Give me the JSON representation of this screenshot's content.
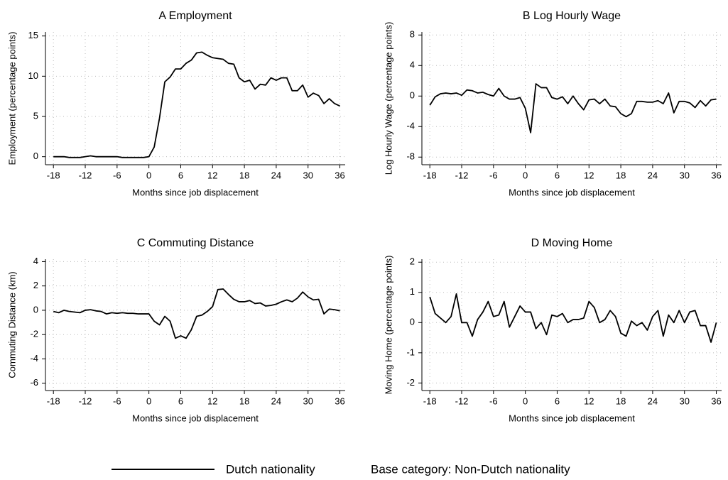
{
  "chart_data": [
    {
      "type": "line",
      "title": "A Employment",
      "x_label": "Months since job displacement",
      "y_label": "Employment (percentage points)",
      "x": [
        -18,
        -17,
        -16,
        -15,
        -14,
        -13,
        -12,
        -11,
        -10,
        -9,
        -8,
        -7,
        -6,
        -5,
        -4,
        -3,
        -2,
        -1,
        0,
        1,
        2,
        3,
        4,
        5,
        6,
        7,
        8,
        9,
        10,
        11,
        12,
        13,
        14,
        15,
        16,
        17,
        18,
        19,
        20,
        21,
        22,
        23,
        24,
        25,
        26,
        27,
        28,
        29,
        30,
        31,
        32,
        33,
        34,
        35,
        36
      ],
      "values": [
        0,
        0,
        0,
        -0.1,
        -0.1,
        -0.1,
        0,
        0.1,
        0,
        0,
        0,
        0,
        0,
        -0.1,
        -0.1,
        -0.1,
        -0.1,
        -0.1,
        0,
        1.2,
        4.8,
        9.3,
        9.9,
        10.9,
        10.9,
        11.6,
        12.0,
        12.9,
        13.0,
        12.6,
        12.3,
        12.2,
        12.1,
        11.6,
        11.5,
        9.8,
        9.3,
        9.5,
        8.4,
        9.0,
        8.9,
        9.8,
        9.5,
        9.8,
        9.8,
        8.2,
        8.2,
        8.9,
        7.4,
        7.9,
        7.6,
        6.6,
        7.2,
        6.6,
        6.3
      ],
      "color": "#000000",
      "xlim": [
        -19.5,
        37
      ],
      "xticks": [
        -18,
        -12,
        -6,
        0,
        6,
        12,
        18,
        24,
        30,
        36
      ],
      "ylim": [
        -1,
        15.5
      ],
      "yticks": [
        0,
        5,
        10,
        15
      ],
      "grid": true
    },
    {
      "type": "line",
      "title": "B Log Hourly Wage",
      "x_label": "Months since job displacement",
      "y_label": "Log Hourly Wage (percentage points)",
      "x": [
        -18,
        -17,
        -16,
        -15,
        -14,
        -13,
        -12,
        -11,
        -10,
        -9,
        -8,
        -7,
        -6,
        -5,
        -4,
        -3,
        -2,
        -1,
        0,
        1,
        2,
        3,
        4,
        5,
        6,
        7,
        8,
        9,
        10,
        11,
        12,
        13,
        14,
        15,
        16,
        17,
        18,
        19,
        20,
        21,
        22,
        23,
        24,
        25,
        26,
        27,
        28,
        29,
        30,
        31,
        32,
        33,
        34,
        35,
        36
      ],
      "values": [
        -1.2,
        -0.1,
        0.3,
        0.4,
        0.3,
        0.4,
        0.1,
        0.8,
        0.7,
        0.4,
        0.5,
        0.2,
        0.0,
        1.0,
        0.0,
        -0.4,
        -0.4,
        -0.2,
        -1.6,
        -4.8,
        1.6,
        1.1,
        1.1,
        -0.2,
        -0.4,
        -0.1,
        -1.0,
        0.0,
        -1.0,
        -1.8,
        -0.5,
        -0.4,
        -1.0,
        -0.4,
        -1.3,
        -1.4,
        -2.3,
        -2.7,
        -2.3,
        -0.7,
        -0.7,
        -0.8,
        -0.8,
        -0.6,
        -1.0,
        0.4,
        -2.2,
        -0.7,
        -0.7,
        -0.9,
        -1.5,
        -0.6,
        -1.3,
        -0.5,
        -0.4
      ],
      "color": "#000000",
      "xlim": [
        -19.5,
        37
      ],
      "xticks": [
        -18,
        -12,
        -6,
        0,
        6,
        12,
        18,
        24,
        30,
        36
      ],
      "ylim": [
        -9,
        8.4
      ],
      "yticks": [
        -8,
        -4,
        0,
        4,
        8
      ],
      "grid": true
    },
    {
      "type": "line",
      "title": "C Commuting Distance",
      "x_label": "Months since job displacement",
      "y_label": "Commuting Distance (km)",
      "x": [
        -18,
        -17,
        -16,
        -15,
        -14,
        -13,
        -12,
        -11,
        -10,
        -9,
        -8,
        -7,
        -6,
        -5,
        -4,
        -3,
        -2,
        -1,
        0,
        1,
        2,
        3,
        4,
        5,
        6,
        7,
        8,
        9,
        10,
        11,
        12,
        13,
        14,
        15,
        16,
        17,
        18,
        19,
        20,
        21,
        22,
        23,
        24,
        25,
        26,
        27,
        28,
        29,
        30,
        31,
        32,
        33,
        34,
        35,
        36
      ],
      "values": [
        -0.1,
        -0.2,
        0,
        -0.1,
        -0.15,
        -0.2,
        0,
        0.05,
        -0.05,
        -0.1,
        -0.3,
        -0.2,
        -0.25,
        -0.2,
        -0.25,
        -0.25,
        -0.3,
        -0.3,
        -0.3,
        -0.9,
        -1.2,
        -0.5,
        -0.9,
        -2.3,
        -2.1,
        -2.3,
        -1.6,
        -0.5,
        -0.4,
        -0.1,
        0.3,
        1.7,
        1.75,
        1.3,
        0.9,
        0.7,
        0.7,
        0.8,
        0.55,
        0.6,
        0.35,
        0.4,
        0.5,
        0.7,
        0.85,
        0.7,
        1.0,
        1.5,
        1.1,
        0.85,
        0.9,
        -0.3,
        0.1,
        0.05,
        -0.05
      ],
      "color": "#000000",
      "xlim": [
        -19.5,
        37
      ],
      "xticks": [
        -18,
        -12,
        -6,
        0,
        6,
        12,
        18,
        24,
        30,
        36
      ],
      "ylim": [
        -6.6,
        4.2
      ],
      "yticks": [
        -6,
        -4,
        -2,
        0,
        2,
        4
      ],
      "grid": true
    },
    {
      "type": "line",
      "title": "D Moving Home",
      "x_label": "Months since job displacement",
      "y_label": "Moving Home (percentage points)",
      "x": [
        -18,
        -17,
        -16,
        -15,
        -14,
        -13,
        -12,
        -11,
        -10,
        -9,
        -8,
        -7,
        -6,
        -5,
        -4,
        -3,
        -2,
        -1,
        0,
        1,
        2,
        3,
        4,
        5,
        6,
        7,
        8,
        9,
        10,
        11,
        12,
        13,
        14,
        15,
        16,
        17,
        18,
        19,
        20,
        21,
        22,
        23,
        24,
        25,
        26,
        27,
        28,
        29,
        30,
        31,
        32,
        33,
        34,
        35,
        36
      ],
      "values": [
        0.85,
        0.3,
        0.15,
        0.0,
        0.2,
        0.95,
        0.0,
        0.0,
        -0.45,
        0.1,
        0.35,
        0.7,
        0.2,
        0.25,
        0.7,
        -0.15,
        0.2,
        0.55,
        0.35,
        0.35,
        -0.2,
        0.0,
        -0.4,
        0.25,
        0.2,
        0.3,
        0.0,
        0.1,
        0.1,
        0.15,
        0.7,
        0.5,
        0.0,
        0.1,
        0.4,
        0.2,
        -0.35,
        -0.45,
        0.05,
        -0.1,
        0.0,
        -0.25,
        0.2,
        0.4,
        -0.45,
        0.25,
        0.0,
        0.4,
        0.0,
        0.35,
        0.4,
        -0.1,
        -0.1,
        -0.65,
        0.0
      ],
      "color": "#000000",
      "xlim": [
        -19.5,
        37
      ],
      "xticks": [
        -18,
        -12,
        -6,
        0,
        6,
        12,
        18,
        24,
        30,
        36
      ],
      "ylim": [
        -2.25,
        2.1
      ],
      "yticks": [
        -2,
        -1,
        0,
        1,
        2
      ],
      "grid": true
    }
  ],
  "legend": {
    "label": "Dutch nationality",
    "note": "Base category: Non-Dutch nationality"
  }
}
